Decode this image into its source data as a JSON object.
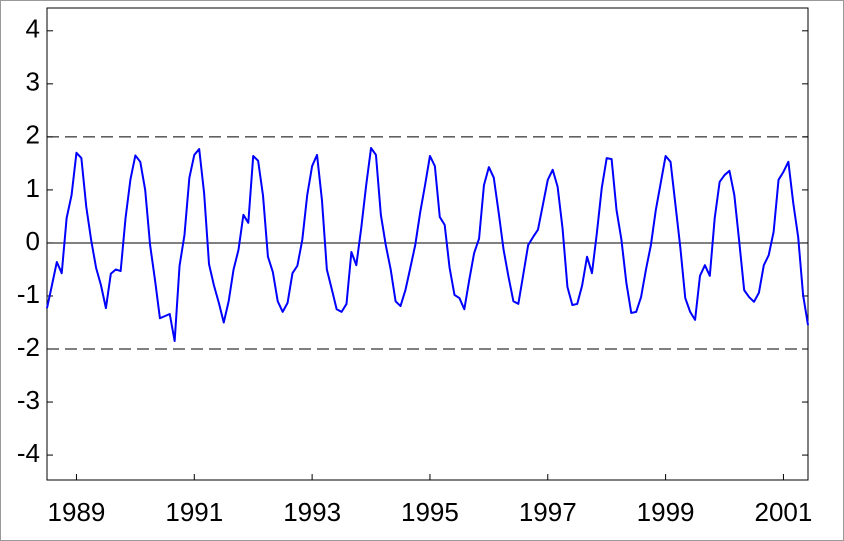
{
  "chart_data": {
    "type": "line",
    "series": [
      {
        "color": "#0000ff",
        "values": [
          -1.23,
          -0.8,
          -0.36,
          -0.57,
          0.47,
          0.9,
          1.7,
          1.6,
          0.68,
          0.05,
          -0.47,
          -0.8,
          -1.23,
          -0.58,
          -0.5,
          -0.53,
          0.47,
          1.2,
          1.65,
          1.53,
          1.0,
          -0.04,
          -0.7,
          -1.42,
          -1.38,
          -1.34,
          -1.85,
          -0.43,
          0.15,
          1.23,
          1.66,
          1.77,
          0.94,
          -0.4,
          -0.8,
          -1.13,
          -1.5,
          -1.1,
          -0.5,
          -0.13,
          0.53,
          0.38,
          1.64,
          1.55,
          0.89,
          -0.26,
          -0.55,
          -1.1,
          -1.3,
          -1.13,
          -0.57,
          -0.43,
          0.06,
          0.9,
          1.45,
          1.66,
          0.81,
          -0.5,
          -0.87,
          -1.25,
          -1.3,
          -1.15,
          -0.17,
          -0.42,
          0.28,
          1.08,
          1.79,
          1.66,
          0.53,
          -0.04,
          -0.5,
          -1.1,
          -1.19,
          -0.89,
          -0.47,
          -0.04,
          0.57,
          1.09,
          1.64,
          1.45,
          0.49,
          0.34,
          -0.47,
          -0.98,
          -1.04,
          -1.25,
          -0.7,
          -0.19,
          0.08,
          1.09,
          1.43,
          1.23,
          0.57,
          -0.13,
          -0.64,
          -1.1,
          -1.15,
          -0.6,
          -0.04,
          0.11,
          0.25,
          0.72,
          1.19,
          1.38,
          1.06,
          0.28,
          -0.83,
          -1.17,
          -1.15,
          -0.8,
          -0.26,
          -0.57,
          0.19,
          1.04,
          1.6,
          1.58,
          0.62,
          0.06,
          -0.75,
          -1.32,
          -1.3,
          -1.02,
          -0.5,
          -0.04,
          0.62,
          1.13,
          1.64,
          1.53,
          0.72,
          -0.09,
          -1.04,
          -1.3,
          -1.45,
          -0.62,
          -0.42,
          -0.62,
          0.47,
          1.15,
          1.28,
          1.36,
          0.9,
          0.02,
          -0.89,
          -1.02,
          -1.11,
          -0.94,
          -0.42,
          -0.23,
          0.21,
          1.19,
          1.34,
          1.53,
          0.75,
          0.11,
          -0.98,
          -1.55
        ]
      }
    ],
    "xlim": [
      1988.5,
      2001.417
    ],
    "xticks": [
      1989,
      1991,
      1993,
      1995,
      1997,
      1999,
      2001
    ],
    "ylim": [
      -4.47,
      4.43
    ],
    "yticks": [
      -4,
      -3,
      -2,
      -1,
      0,
      1,
      2,
      3,
      4
    ],
    "hlines": [
      {
        "value": -2,
        "style": "dashed"
      },
      {
        "value": 0,
        "style": "solid"
      },
      {
        "value": 2,
        "style": "dashed"
      }
    ]
  }
}
